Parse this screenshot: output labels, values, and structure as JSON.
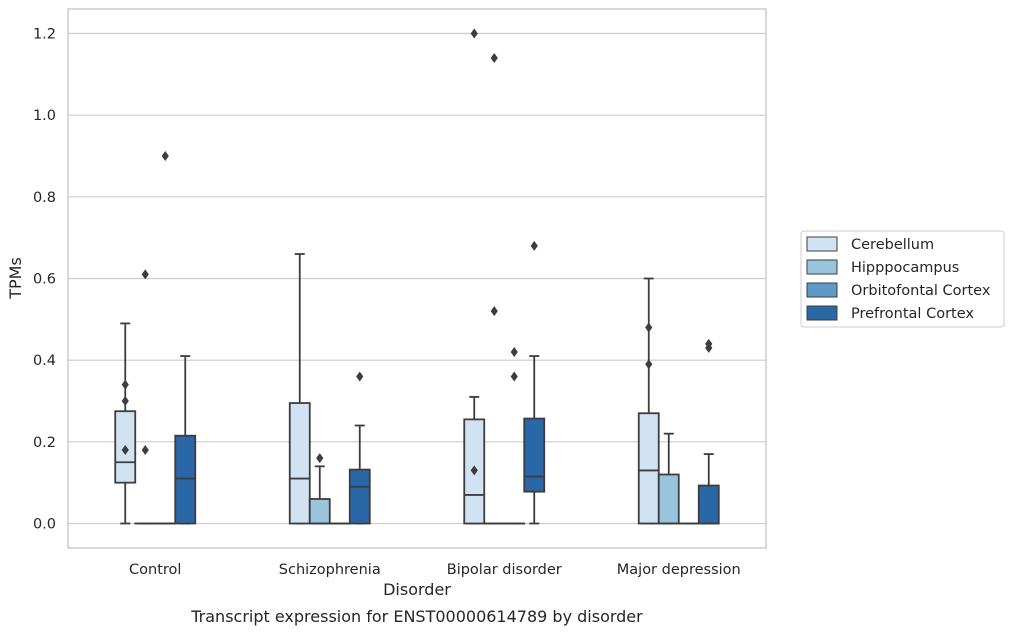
{
  "caption": "Transcript expression for ENST00000614789 by disorder",
  "chart_data": {
    "type": "box",
    "xlabel": "Disorder",
    "ylabel": "TPMs",
    "ylim": [
      -0.06,
      1.26
    ],
    "yticks": [
      "0.0",
      "0.2",
      "0.4",
      "0.6",
      "0.8",
      "1.0",
      "1.2"
    ],
    "grid": "horizontal",
    "legend_placement": "right-center",
    "categories": [
      "Control",
      "Schizophrenia",
      "Bipolar disorder",
      "Major depression"
    ],
    "series": [
      {
        "name": "Cerebellum",
        "color": "#d1e2f2",
        "boxes": [
          {
            "whislo": 0.0,
            "q1": 0.1,
            "med": 0.15,
            "q3": 0.275,
            "whishi": 0.49,
            "fliers": [
              0.34,
              0.3,
              0.18
            ]
          },
          {
            "whislo": 0.0,
            "q1": 0.0,
            "med": 0.11,
            "q3": 0.295,
            "whishi": 0.66,
            "fliers": []
          },
          {
            "whislo": 0.0,
            "q1": 0.0,
            "med": 0.07,
            "q3": 0.255,
            "whishi": 0.31,
            "fliers": [
              1.2,
              0.13
            ]
          },
          {
            "whislo": 0.0,
            "q1": 0.0,
            "med": 0.13,
            "q3": 0.27,
            "whishi": 0.6,
            "fliers": [
              0.48,
              0.39
            ]
          }
        ]
      },
      {
        "name": "Hipppocampus",
        "color": "#9ac3de",
        "boxes": [
          {
            "whislo": 0.0,
            "q1": 0.0,
            "med": 0.0,
            "q3": 0.0,
            "whishi": 0.0,
            "fliers": [
              0.61,
              0.18
            ]
          },
          {
            "whislo": 0.0,
            "q1": 0.0,
            "med": 0.0,
            "q3": 0.06,
            "whishi": 0.14,
            "fliers": [
              0.16
            ]
          },
          {
            "whislo": 0.0,
            "q1": 0.0,
            "med": 0.0,
            "q3": 0.0,
            "whishi": 0.0,
            "fliers": [
              1.14,
              0.52
            ]
          },
          {
            "whislo": 0.0,
            "q1": 0.0,
            "med": 0.0,
            "q3": 0.12,
            "whishi": 0.22,
            "fliers": []
          }
        ]
      },
      {
        "name": "Orbitofontal Cortex",
        "color": "#5c9ac8",
        "boxes": [
          {
            "whislo": 0.0,
            "q1": 0.0,
            "med": 0.0,
            "q3": 0.0,
            "whishi": 0.0,
            "fliers": [
              0.9
            ]
          },
          {
            "whislo": 0.0,
            "q1": 0.0,
            "med": 0.0,
            "q3": 0.0,
            "whishi": 0.0,
            "fliers": []
          },
          {
            "whislo": 0.0,
            "q1": 0.0,
            "med": 0.0,
            "q3": 0.0,
            "whishi": 0.0,
            "fliers": [
              0.42,
              0.36
            ]
          },
          {
            "whislo": 0.0,
            "q1": 0.0,
            "med": 0.0,
            "q3": 0.0,
            "whishi": 0.0,
            "fliers": []
          }
        ]
      },
      {
        "name": "Prefrontal Cortex",
        "color": "#2a67a7",
        "boxes": [
          {
            "whislo": 0.0,
            "q1": 0.0,
            "med": 0.11,
            "q3": 0.215,
            "whishi": 0.41,
            "fliers": []
          },
          {
            "whislo": 0.0,
            "q1": 0.0,
            "med": 0.09,
            "q3": 0.132,
            "whishi": 0.24,
            "fliers": [
              0.36
            ]
          },
          {
            "whislo": 0.0,
            "q1": 0.078,
            "med": 0.115,
            "q3": 0.257,
            "whishi": 0.41,
            "fliers": [
              0.68
            ]
          },
          {
            "whislo": 0.0,
            "q1": 0.0,
            "med": 0.0,
            "q3": 0.093,
            "whishi": 0.17,
            "fliers": [
              0.44,
              0.43
            ]
          }
        ]
      }
    ]
  }
}
